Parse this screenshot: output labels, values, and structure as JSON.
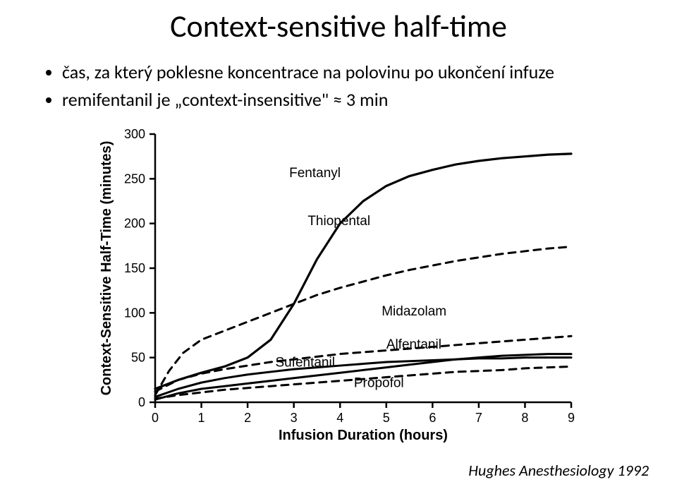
{
  "title": "Context-sensitive half-time",
  "bullets": {
    "b1": "čas, za který poklesne koncentrace na polovinu po ukončení infuze",
    "b2": "remifentanil je „context-insensitive\" ≈ 3 min"
  },
  "citation": "Hughes Anesthesiology 1992",
  "chart": {
    "type": "line",
    "background_color": "#ffffff",
    "axis_color": "#000000",
    "axis_linewidth": 2.5,
    "xlim": [
      0,
      9
    ],
    "ylim": [
      0,
      300
    ],
    "xticks": [
      0,
      1,
      2,
      3,
      4,
      5,
      6,
      7,
      8,
      9
    ],
    "yticks": [
      0,
      50,
      100,
      150,
      200,
      250,
      300
    ],
    "xlabel": "Infusion Duration (hours)",
    "ylabel": "Context-Sensitive Half-Time (minutes)",
    "label_fontsize": 20,
    "tick_fontsize": 18,
    "series_label_fontsize": 19,
    "tick_len": 8,
    "series": [
      {
        "name": "Fentanyl",
        "dash": "solid",
        "linewidth": 3.2,
        "label_xy": [
          2.9,
          252
        ],
        "points": [
          [
            0,
            15
          ],
          [
            0.5,
            25
          ],
          [
            1,
            33
          ],
          [
            1.5,
            40
          ],
          [
            2,
            50
          ],
          [
            2.5,
            70
          ],
          [
            3,
            110
          ],
          [
            3.5,
            160
          ],
          [
            4,
            200
          ],
          [
            4.5,
            225
          ],
          [
            5,
            242
          ],
          [
            5.5,
            253
          ],
          [
            6,
            260
          ],
          [
            6.5,
            266
          ],
          [
            7,
            270
          ],
          [
            7.5,
            273
          ],
          [
            8,
            275
          ],
          [
            8.5,
            277
          ],
          [
            9,
            278
          ]
        ]
      },
      {
        "name": "Thiopental",
        "dash": "dashed",
        "linewidth": 3.0,
        "label_xy": [
          3.3,
          198
        ],
        "points": [
          [
            0,
            8
          ],
          [
            0.3,
            35
          ],
          [
            0.6,
            55
          ],
          [
            1,
            70
          ],
          [
            1.5,
            80
          ],
          [
            2,
            90
          ],
          [
            2.5,
            100
          ],
          [
            3,
            110
          ],
          [
            3.5,
            120
          ],
          [
            4,
            128
          ],
          [
            4.5,
            135
          ],
          [
            5,
            142
          ],
          [
            5.5,
            148
          ],
          [
            6,
            153
          ],
          [
            6.5,
            158
          ],
          [
            7,
            162
          ],
          [
            7.5,
            166
          ],
          [
            8,
            169
          ],
          [
            8.5,
            172
          ],
          [
            9,
            174
          ]
        ]
      },
      {
        "name": "Midazolam",
        "dash": "dashed",
        "linewidth": 3.0,
        "label_xy": [
          4.9,
          97
        ],
        "points": [
          [
            0,
            12
          ],
          [
            0.5,
            25
          ],
          [
            1,
            32
          ],
          [
            1.5,
            37
          ],
          [
            2,
            41
          ],
          [
            2.5,
            45
          ],
          [
            3,
            48
          ],
          [
            3.5,
            51
          ],
          [
            4,
            54
          ],
          [
            4.5,
            56
          ],
          [
            5,
            58
          ],
          [
            5.5,
            60
          ],
          [
            6,
            62
          ],
          [
            6.5,
            64
          ],
          [
            7,
            66
          ],
          [
            7.5,
            68
          ],
          [
            8,
            70
          ],
          [
            8.5,
            72
          ],
          [
            9,
            74
          ]
        ]
      },
      {
        "name": "Sufentanil",
        "dash": "solid",
        "linewidth": 3.0,
        "label_xy": [
          2.6,
          40
        ],
        "points": [
          [
            0,
            3
          ],
          [
            0.5,
            10
          ],
          [
            1,
            15
          ],
          [
            1.5,
            18
          ],
          [
            2,
            21
          ],
          [
            2.5,
            24
          ],
          [
            3,
            27
          ],
          [
            3.5,
            30
          ],
          [
            4,
            33
          ],
          [
            4.5,
            36
          ],
          [
            5,
            39
          ],
          [
            5.5,
            42
          ],
          [
            6,
            45
          ],
          [
            6.5,
            48
          ],
          [
            7,
            50
          ],
          [
            7.5,
            52
          ],
          [
            8,
            53
          ],
          [
            8.5,
            54
          ],
          [
            9,
            54
          ]
        ]
      },
      {
        "name": "Alfentanil",
        "dash": "solid",
        "linewidth": 3.0,
        "label_xy": [
          5.0,
          60
        ],
        "points": [
          [
            0,
            6
          ],
          [
            0.5,
            15
          ],
          [
            1,
            22
          ],
          [
            1.5,
            27
          ],
          [
            2,
            31
          ],
          [
            2.5,
            34
          ],
          [
            3,
            37
          ],
          [
            3.5,
            39
          ],
          [
            4,
            41
          ],
          [
            4.5,
            43
          ],
          [
            5,
            45
          ],
          [
            5.5,
            46
          ],
          [
            6,
            47
          ],
          [
            6.5,
            48
          ],
          [
            7,
            49
          ],
          [
            7.5,
            49
          ],
          [
            8,
            50
          ],
          [
            8.5,
            50
          ],
          [
            9,
            50
          ]
        ]
      },
      {
        "name": "Propofol",
        "dash": "dashed",
        "linewidth": 3.0,
        "label_xy": [
          4.3,
          17
        ],
        "points": [
          [
            0,
            4
          ],
          [
            0.5,
            8
          ],
          [
            1,
            11
          ],
          [
            1.5,
            14
          ],
          [
            2,
            16
          ],
          [
            2.5,
            18
          ],
          [
            3,
            20
          ],
          [
            3.5,
            22
          ],
          [
            4,
            24
          ],
          [
            4.5,
            26
          ],
          [
            5,
            28
          ],
          [
            5.5,
            30
          ],
          [
            6,
            32
          ],
          [
            6.5,
            34
          ],
          [
            7,
            35
          ],
          [
            7.5,
            36
          ],
          [
            8,
            38
          ],
          [
            8.5,
            39
          ],
          [
            9,
            40
          ]
        ]
      }
    ]
  }
}
